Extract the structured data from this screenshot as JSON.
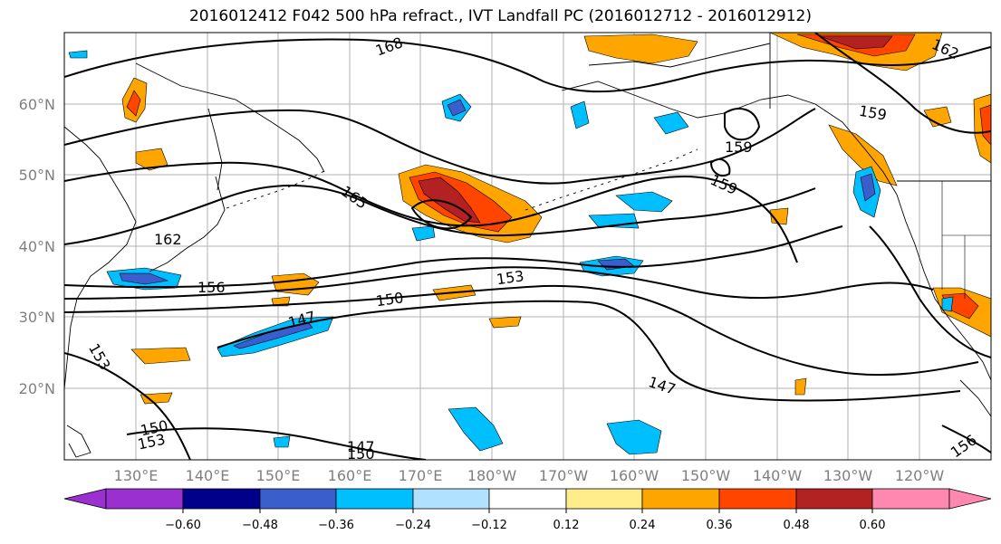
{
  "title": "2016012412 F042 500 hPa refract., IVT Landfall PC (2016012712 - 2016012912)",
  "lat_labels": [
    "60°N",
    "50°N",
    "40°N",
    "30°N",
    "20°N"
  ],
  "lon_labels": [
    "130°E",
    "140°E",
    "150°E",
    "160°E",
    "170°E",
    "180°W",
    "170°W",
    "160°W",
    "150°W",
    "140°W",
    "130°W",
    "120°W"
  ],
  "contour_labels": [
    "168",
    "165",
    "162",
    "159",
    "159",
    "159",
    "156",
    "153",
    "153",
    "150",
    "150",
    "150",
    "147",
    "147",
    "147",
    "153",
    "156",
    "162"
  ],
  "colorbar": {
    "ticks": [
      "−0.60",
      "−0.48",
      "−0.36",
      "−0.24",
      "−0.12",
      "0.12",
      "0.24",
      "0.36",
      "0.48",
      "0.60"
    ],
    "colors": [
      "#9b30d0",
      "#00008b",
      "#3a5fcd",
      "#00bfff",
      "#b0e2ff",
      "#ffffff",
      "#ffec8b",
      "#ffa500",
      "#ff4500",
      "#b22222",
      "#ff88b0"
    ]
  }
}
